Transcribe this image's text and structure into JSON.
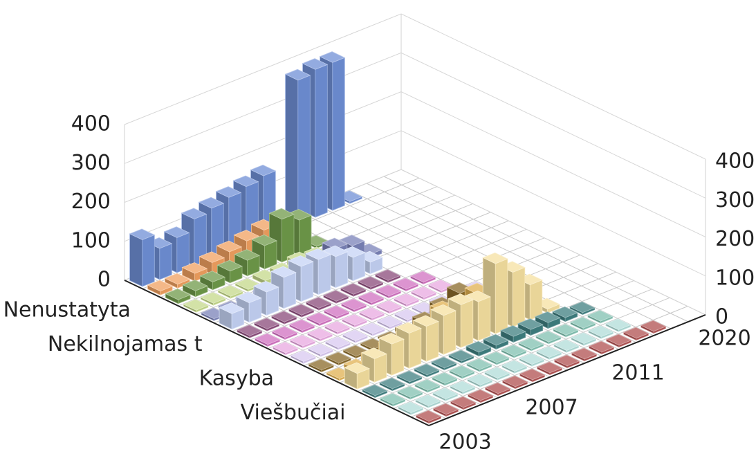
{
  "chart_data": {
    "type": "bar3d",
    "categories": [
      "2003",
      null,
      null,
      null,
      null,
      "2007",
      null,
      null,
      null,
      null,
      "2011",
      null,
      null,
      null,
      null,
      "2020"
    ],
    "ylim": [
      0,
      400
    ],
    "yticks": [
      0,
      100,
      200,
      300,
      400
    ],
    "grid": true,
    "series": [
      {
        "name": "Nenustatyta",
        "color": "#6f8fd6",
        "values": [
          120,
          80,
          90,
          120,
          130,
          140,
          150,
          160,
          15,
          370,
          380,
          380,
          5,
          null,
          null,
          null
        ]
      },
      {
        "name": null,
        "color": "#f0a060",
        "values": [
          10,
          10,
          20,
          30,
          40,
          50,
          60,
          10,
          null,
          null,
          null,
          null,
          null,
          null,
          null,
          null
        ]
      },
      {
        "name": null,
        "color": "#6f9a4a",
        "values": [
          10,
          15,
          20,
          30,
          40,
          60,
          110,
          90,
          5,
          null,
          null,
          null,
          null,
          null,
          null,
          null
        ]
      },
      {
        "name": null,
        "color": "#c4d88a",
        "values": [
          5,
          5,
          5,
          5,
          10,
          10,
          20,
          15,
          null,
          null,
          null,
          null,
          null,
          null,
          null,
          null
        ]
      },
      {
        "name": "Nekilnojamas t",
        "color": "#7a82b8",
        "values": [
          5,
          5,
          10,
          10,
          10,
          10,
          30,
          60,
          50,
          10,
          null,
          null,
          null,
          null,
          null,
          null
        ]
      },
      {
        "name": null,
        "color": "#c5d3f5",
        "values": [
          40,
          50,
          60,
          80,
          90,
          90,
          80,
          60,
          30,
          null,
          null,
          null,
          null,
          null,
          null,
          null
        ]
      },
      {
        "name": null,
        "color": "#8a4a7a",
        "values": [
          5,
          5,
          5,
          5,
          5,
          5,
          5,
          5,
          5,
          null,
          null,
          null,
          null,
          null,
          null,
          null
        ]
      },
      {
        "name": null,
        "color": "#d070c0",
        "values": [
          5,
          5,
          5,
          5,
          5,
          5,
          5,
          5,
          5,
          5,
          null,
          null,
          null,
          null,
          null,
          null
        ]
      },
      {
        "name": "Kasyba",
        "color": "#e8a8e0",
        "values": [
          5,
          5,
          5,
          5,
          5,
          5,
          5,
          5,
          5,
          5,
          null,
          null,
          null,
          null,
          null,
          null
        ]
      },
      {
        "name": null,
        "color": "#d8c8f0",
        "values": [
          5,
          5,
          5,
          5,
          5,
          5,
          5,
          5,
          5,
          5,
          5,
          null,
          null,
          null,
          null,
          null
        ]
      },
      {
        "name": null,
        "color": "#8a6a2a",
        "values": [
          5,
          5,
          5,
          5,
          5,
          10,
          20,
          40,
          60,
          10,
          5,
          null,
          null,
          null,
          null,
          null
        ]
      },
      {
        "name": null,
        "color": "#e0b050",
        "values": [
          5,
          10,
          20,
          30,
          40,
          50,
          70,
          60,
          80,
          20,
          5,
          null,
          null,
          null,
          null,
          null
        ]
      },
      {
        "name": "Viešbučiai",
        "color": "#f5e0a0",
        "values": [
          40,
          60,
          80,
          90,
          90,
          100,
          110,
          100,
          180,
          140,
          90,
          10,
          null,
          null,
          null,
          null
        ]
      },
      {
        "name": null,
        "color": "#3f7f80",
        "values": [
          5,
          5,
          5,
          5,
          5,
          5,
          10,
          10,
          15,
          15,
          15,
          10,
          5,
          null,
          null,
          null
        ]
      },
      {
        "name": null,
        "color": "#80c0b0",
        "values": [
          5,
          5,
          5,
          5,
          5,
          5,
          5,
          5,
          5,
          5,
          5,
          5,
          5,
          null,
          null,
          null
        ]
      },
      {
        "name": null,
        "color": "#b0dcd8",
        "values": [
          5,
          5,
          5,
          5,
          5,
          5,
          5,
          5,
          5,
          5,
          5,
          5,
          5,
          null,
          null,
          null
        ]
      },
      {
        "name": null,
        "color": "#b05050",
        "values": [
          5,
          5,
          5,
          5,
          5,
          5,
          5,
          5,
          5,
          5,
          5,
          5,
          5,
          5,
          null,
          null
        ]
      }
    ]
  }
}
